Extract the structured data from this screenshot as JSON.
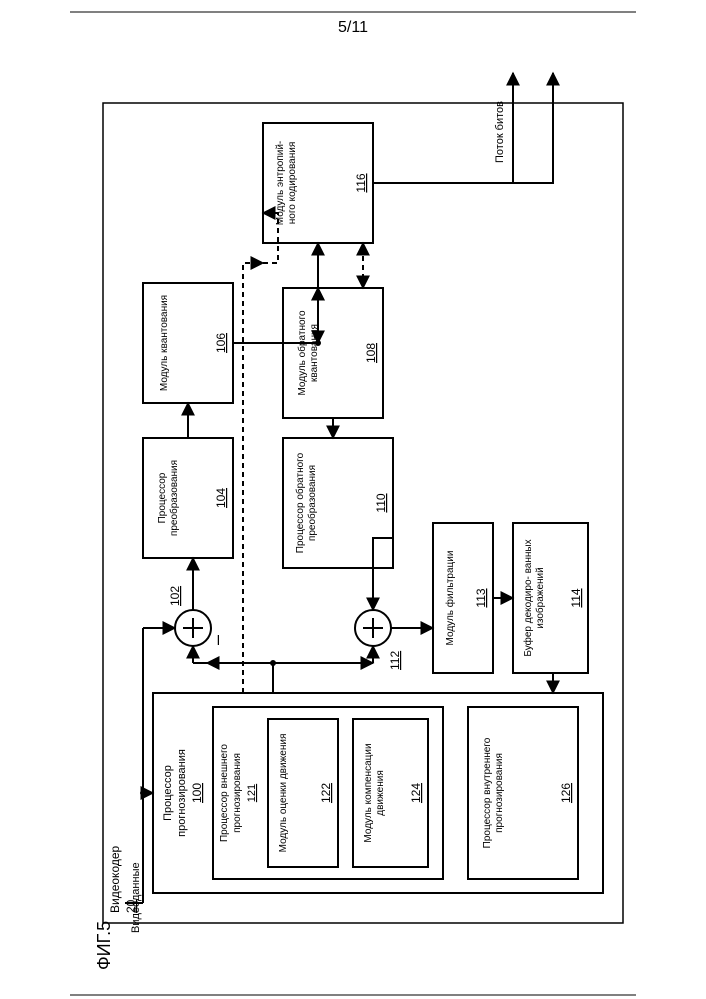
{
  "page_number": "5/11",
  "figure_label": "ФИГ.5",
  "diagram": {
    "type": "flowchart",
    "background_color": "#ffffff",
    "stroke_color": "#000000",
    "stroke_width": 2,
    "font_family": "Arial",
    "text_color": "#000000",
    "fontsize_label": 11,
    "fontsize_num": 12,
    "rotation_deg": -90,
    "container": {
      "label": "Видеокодер",
      "num": "20"
    },
    "input_label": "Видеоданные",
    "output_label": "Поток битов",
    "blocks": {
      "100": {
        "label": "Процессор прогнозирования",
        "num": "100"
      },
      "121": {
        "label": "Процессор внешнего прогнозирования",
        "num": "121"
      },
      "122": {
        "label": "Модуль оценки движения",
        "num": "122"
      },
      "124": {
        "label": "Модуль компенсации движения",
        "num": "124"
      },
      "126": {
        "label": "Процессор внутреннего прогнозирования",
        "num": "126"
      },
      "104": {
        "label": "Процессор преобразования",
        "num": "104"
      },
      "106": {
        "label": "Модуль квантования",
        "num": "106"
      },
      "116": {
        "label": "Модуль энтропий- ного кодирования",
        "num": "116"
      },
      "108": {
        "label": "Модуль обратного квантования",
        "num": "108"
      },
      "110": {
        "label": "Процессор обратного преобразования",
        "num": "110"
      },
      "113": {
        "label": "Модуль фильтрации",
        "num": "113"
      },
      "114": {
        "label": "Буфер декодиро- ванных изображений",
        "num": "114"
      }
    },
    "sum_nodes": {
      "102": "102",
      "112": "112"
    },
    "dashed_pattern": "5,4"
  }
}
